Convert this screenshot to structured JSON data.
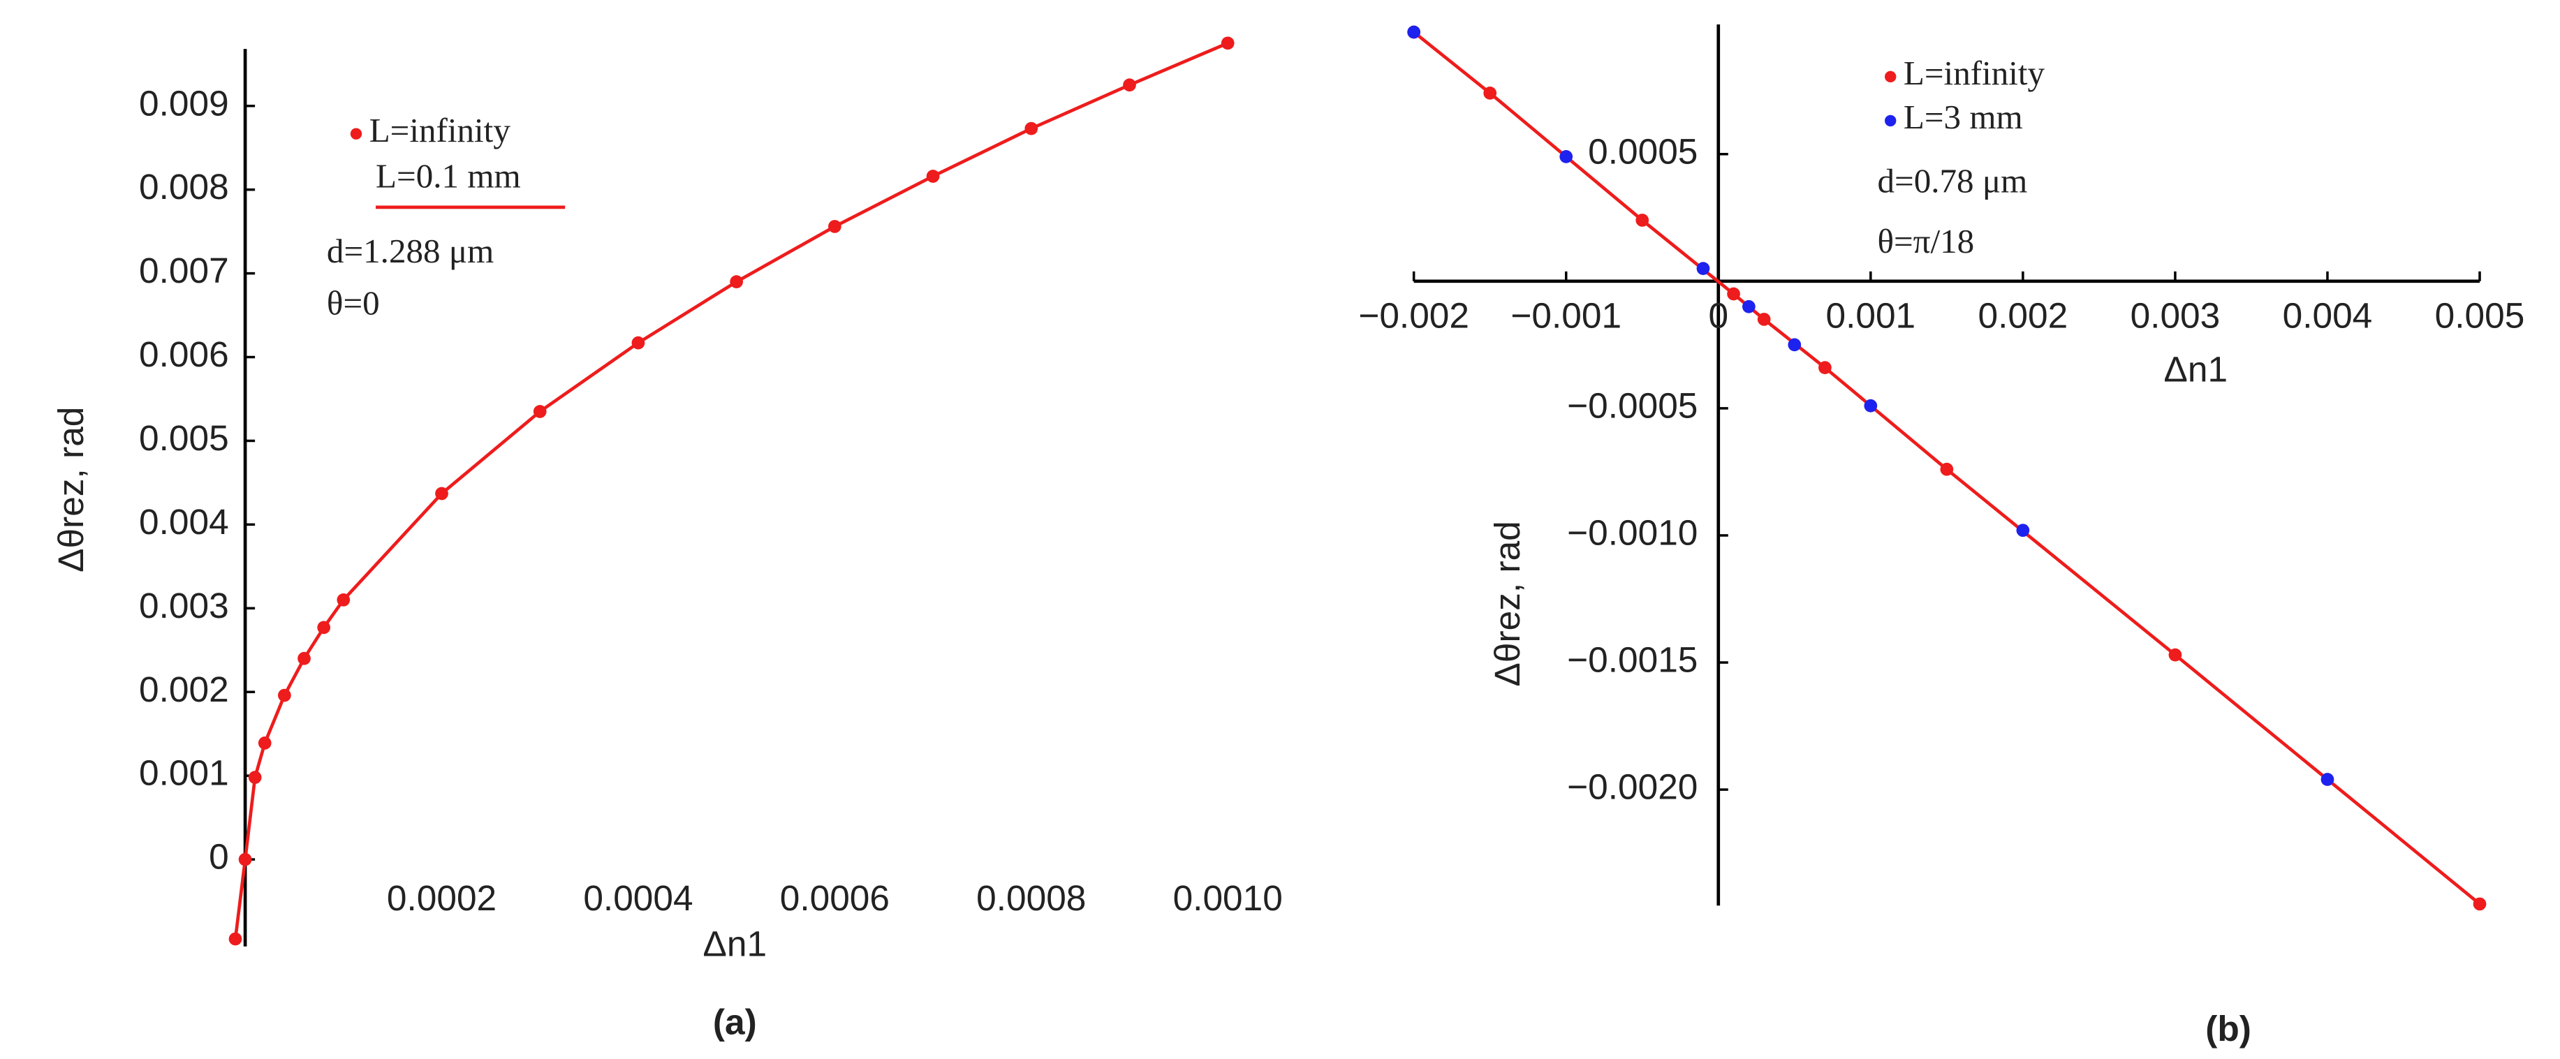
{
  "chart_data": [
    {
      "type": "line",
      "panel": "(a)",
      "x_label": "Δn1",
      "y_label": "Δθrez, rad",
      "xlim": [
        -1e-05,
        0.001
      ],
      "ylim": [
        -0.001,
        0.0097
      ],
      "xticks": [
        0.0002,
        0.0004,
        0.0006,
        0.0008,
        {
          "value": 0.001,
          "label": "0.0010"
        }
      ],
      "yticks": [
        0,
        0.001,
        0.002,
        0.003,
        0.004,
        0.005,
        0.006,
        0.007,
        0.008,
        0.009
      ],
      "annotations": [
        "L=0.1 mm",
        "d=1.288 μm",
        "θ=0"
      ],
      "series": [
        {
          "name": "L=infinity",
          "color": "#ee1c1c",
          "line": true,
          "x": [
            -1e-05,
            0,
            1e-05,
            2e-05,
            4e-05,
            6e-05,
            8e-05,
            0.0001,
            0.0002,
            0.0003,
            0.0004,
            0.0005,
            0.0006,
            0.0007,
            0.0008,
            0.0009,
            0.001
          ],
          "values": [
            -0.00095,
            0,
            0.00098,
            0.00139,
            0.00196,
            0.0024,
            0.00277,
            0.0031,
            0.00437,
            0.00535,
            0.00617,
            0.0069,
            0.00756,
            0.00816,
            0.00873,
            0.00925,
            0.00975
          ]
        }
      ]
    },
    {
      "type": "line",
      "panel": "(b)",
      "x_label": "Δn1",
      "y_label": "Δθrez, rad",
      "xlim": [
        -0.002,
        0.005
      ],
      "ylim": [
        -0.00245,
        0.00101
      ],
      "xticks": [
        {
          "value": -0.002,
          "label": "−0.002"
        },
        {
          "value": -0.001,
          "label": "−0.001"
        },
        0,
        0.001,
        0.002,
        0.003,
        0.004,
        0.005
      ],
      "yticks": [
        0.0005,
        {
          "value": -0.0005,
          "label": "−0.0005"
        },
        {
          "value": -0.001,
          "label": "−0.0010"
        },
        {
          "value": -0.0015,
          "label": "−0.0015"
        },
        {
          "value": -0.002,
          "label": "−0.0020"
        }
      ],
      "annotations": [
        "d=0.78 μm",
        "θ=π/18"
      ],
      "series": [
        {
          "name": "L=infinity",
          "color": "#ee1c1c",
          "line": true,
          "x": [
            -0.002,
            -0.0015,
            -0.0005,
            0.0001,
            0.0003,
            0.0007,
            0.0015,
            0.003,
            0.005
          ],
          "values": [
            0.00098,
            0.00074,
            0.00024,
            -5e-05,
            -0.00015,
            -0.00034,
            -0.00074,
            -0.00147,
            -0.00245
          ]
        },
        {
          "name": "L=3 mm",
          "color": "#1e22ee",
          "line": false,
          "x": [
            -0.002,
            -0.001,
            -0.0001,
            0.0002,
            0.0005,
            0.001,
            0.002,
            0.004
          ],
          "values": [
            0.00098,
            0.00049,
            5e-05,
            -0.0001,
            -0.00025,
            -0.00049,
            -0.00098,
            -0.00196
          ]
        }
      ]
    }
  ]
}
